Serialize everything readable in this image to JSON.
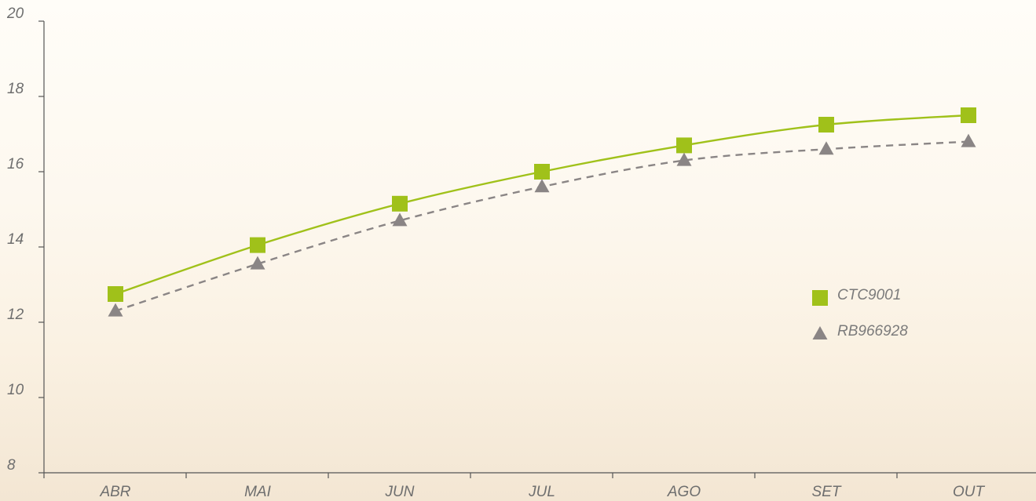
{
  "chart_data": {
    "type": "line",
    "title": "",
    "xlabel": "",
    "ylabel": "",
    "categories": [
      "ABR",
      "MAI",
      "JUN",
      "JUL",
      "AGO",
      "SET",
      "OUT"
    ],
    "ylim": [
      8,
      20
    ],
    "yticks": [
      8,
      10,
      12,
      14,
      16,
      18,
      20
    ],
    "grid": false,
    "legend_position": "right",
    "series": [
      {
        "name": "CTC9001",
        "marker": "square",
        "line_style": "solid",
        "color": "#a0c11a",
        "values": [
          12.75,
          14.05,
          15.15,
          16.0,
          16.7,
          17.25,
          17.5
        ]
      },
      {
        "name": "RB966928",
        "marker": "triangle",
        "line_style": "dashed",
        "color": "#8a8585",
        "values": [
          12.3,
          13.55,
          14.7,
          15.6,
          16.3,
          16.6,
          16.8
        ]
      }
    ]
  }
}
